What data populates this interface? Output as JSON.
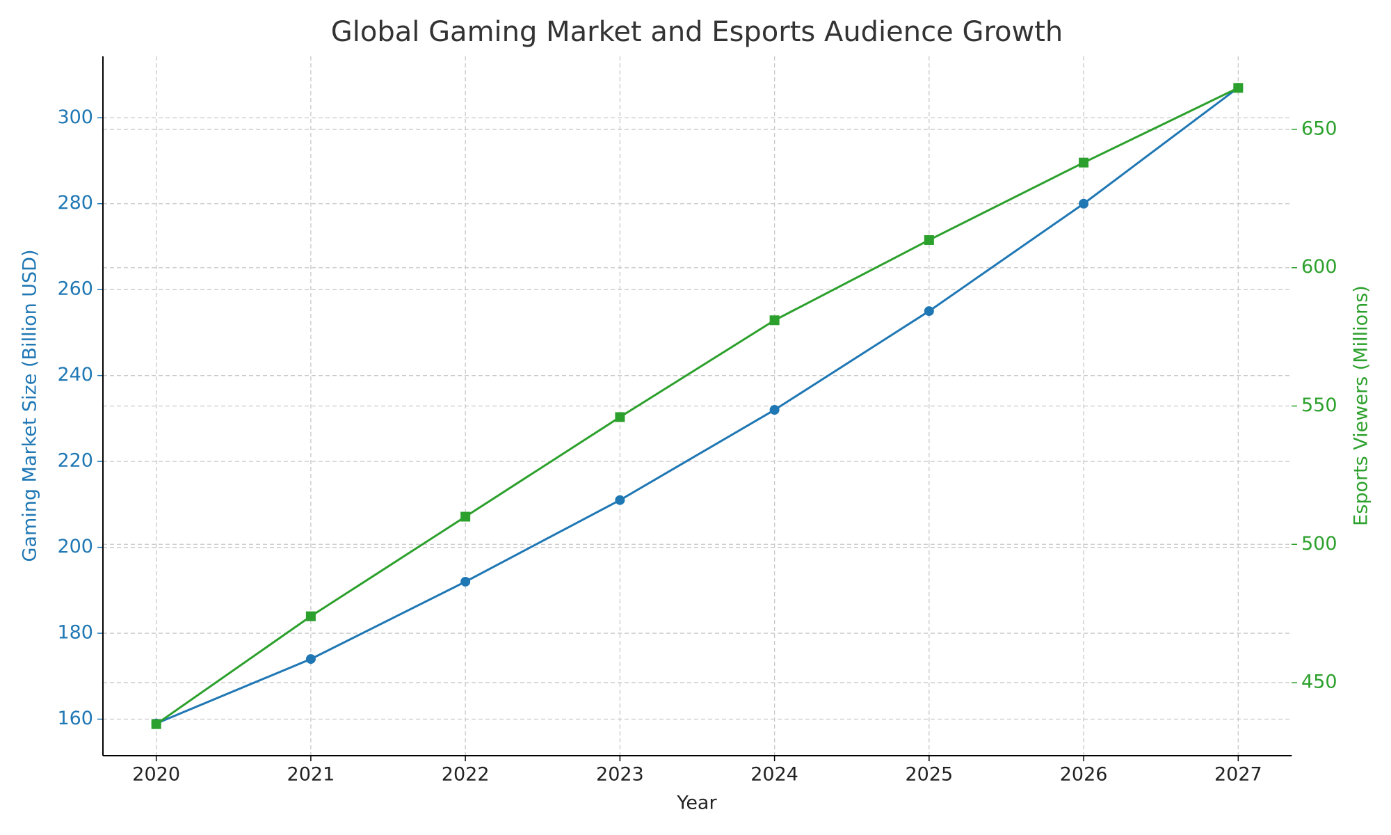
{
  "chart_data": {
    "type": "line",
    "title": "Global Gaming Market and Esports Audience Growth",
    "xlabel": "Year",
    "ylabel": "Gaming Market Size (Billion USD)",
    "y2label": "Esports Viewers (Millions)",
    "x": [
      2020,
      2021,
      2022,
      2023,
      2024,
      2025,
      2026,
      2027
    ],
    "xlim": [
      2019.655,
      2027.345
    ],
    "xticks": [
      2020,
      2021,
      2022,
      2023,
      2024,
      2025,
      2026,
      2027
    ],
    "ylim": [
      151.5,
      314.3
    ],
    "yticks": [
      160,
      180,
      200,
      220,
      240,
      260,
      280,
      300
    ],
    "y2lim": [
      423.6,
      676.4
    ],
    "y2ticks": [
      450,
      500,
      550,
      600,
      650
    ],
    "grid": true,
    "series": [
      {
        "name": "Gaming Market Size (Billion USD)",
        "color": "#1f77b4",
        "marker": "circle",
        "values": [
          159,
          174,
          192,
          211,
          232,
          255,
          280,
          307
        ]
      },
      {
        "name": "Esports Viewers (Millions)",
        "color": "#2ca02c",
        "marker": "square",
        "axis": "y2",
        "values": [
          435,
          474,
          510,
          546,
          581,
          610,
          638,
          665
        ]
      }
    ]
  }
}
